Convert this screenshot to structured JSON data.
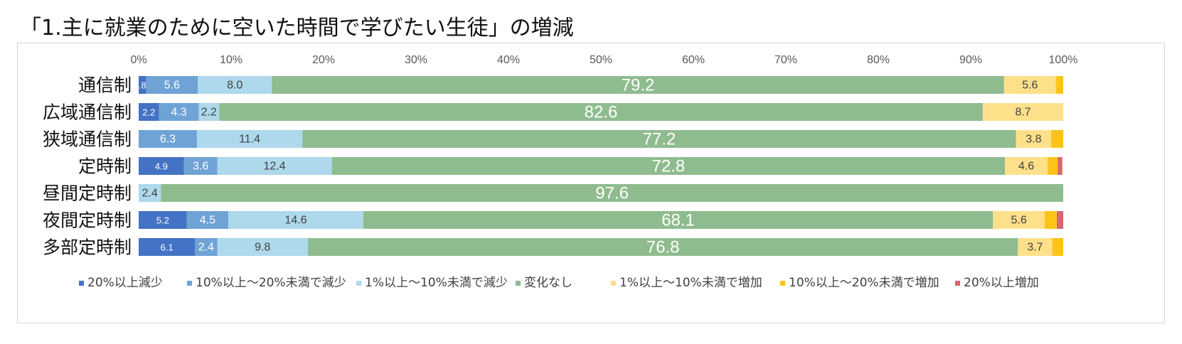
{
  "chart_data": {
    "type": "bar",
    "orientation": "horizontal",
    "stacked": "percent",
    "title": "「1.主に就業のために空いた時間で学びたい生徒」の増減",
    "xlim": [
      0,
      100
    ],
    "x_ticks": [
      "0%",
      "10%",
      "20%",
      "30%",
      "40%",
      "50%",
      "60%",
      "70%",
      "80%",
      "90%",
      "100%"
    ],
    "categories": [
      "通信制",
      "広域通信制",
      "狭域通信制",
      "定時制",
      "昼間定時制",
      "夜間定時制",
      "多部定時制"
    ],
    "legend_position": "bottom",
    "series": [
      {
        "name": "20%以上減少",
        "color": "#4472c4",
        "values": [
          0.8,
          2.2,
          0,
          4.9,
          0,
          5.2,
          6.1
        ],
        "labels": [
          ".8",
          "2.2",
          "",
          "4.9",
          "",
          "5.2",
          "6.1"
        ]
      },
      {
        "name": "10%以上～20%未満で減少",
        "color": "#6fa3d6",
        "values": [
          5.6,
          4.3,
          6.3,
          3.6,
          0,
          4.5,
          2.4
        ],
        "labels": [
          "5.6",
          "4.3",
          "6.3",
          "3.6",
          "",
          "4.5",
          "2.4"
        ]
      },
      {
        "name": "1%以上～10%未満で減少",
        "color": "#aed8ec",
        "values": [
          8.0,
          2.2,
          11.4,
          12.4,
          2.4,
          14.6,
          9.8
        ],
        "labels": [
          "8.0",
          "2.2",
          "11.4",
          "12.4",
          "2.4",
          "14.6",
          "9.8"
        ]
      },
      {
        "name": "変化なし",
        "color": "#8fbc8f",
        "values": [
          79.2,
          82.6,
          77.2,
          72.8,
          97.6,
          68.1,
          76.8
        ],
        "labels": [
          "79.2",
          "82.6",
          "77.2",
          "72.8",
          "97.6",
          "68.1",
          "76.8"
        ]
      },
      {
        "name": "1%以上～10%未満で増加",
        "color": "#ffe08a",
        "values": [
          5.6,
          8.7,
          3.8,
          4.6,
          0,
          5.6,
          3.7
        ],
        "labels": [
          "5.6",
          "8.7",
          "3.8",
          "4.6",
          "",
          "5.6",
          "3.7"
        ]
      },
      {
        "name": "10%以上～20%未満で増加",
        "color": "#fcc419",
        "values": [
          0.8,
          0,
          1.3,
          1.1,
          0,
          1.3,
          1.2
        ],
        "labels": [
          "",
          "",
          "",
          "",
          "",
          "",
          ""
        ]
      },
      {
        "name": "20%以上増加",
        "color": "#d9666b",
        "values": [
          0,
          0,
          0,
          0.5,
          0,
          0.7,
          0
        ],
        "labels": [
          "",
          "",
          "",
          "",
          "",
          "",
          ""
        ]
      }
    ]
  }
}
